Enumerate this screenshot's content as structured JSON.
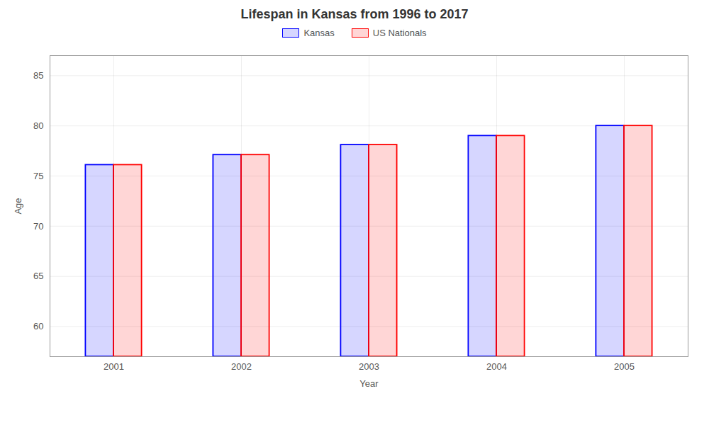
{
  "chart_data": {
    "type": "bar",
    "title": "Lifespan in Kansas from 1996 to 2017",
    "xlabel": "Year",
    "ylabel": "Age",
    "categories": [
      2001,
      2002,
      2003,
      2004,
      2005
    ],
    "series": [
      {
        "name": "Kansas",
        "color": "#0000ff",
        "values": [
          76.1,
          77.1,
          78.1,
          79.0,
          80.0
        ]
      },
      {
        "name": "US Nationals",
        "color": "#ff0000",
        "values": [
          76.1,
          77.1,
          78.1,
          79.0,
          80.0
        ]
      }
    ],
    "ylim": [
      57,
      87
    ],
    "yticks": [
      60,
      65,
      70,
      75,
      80,
      85
    ],
    "grid": true,
    "legend": "top"
  }
}
